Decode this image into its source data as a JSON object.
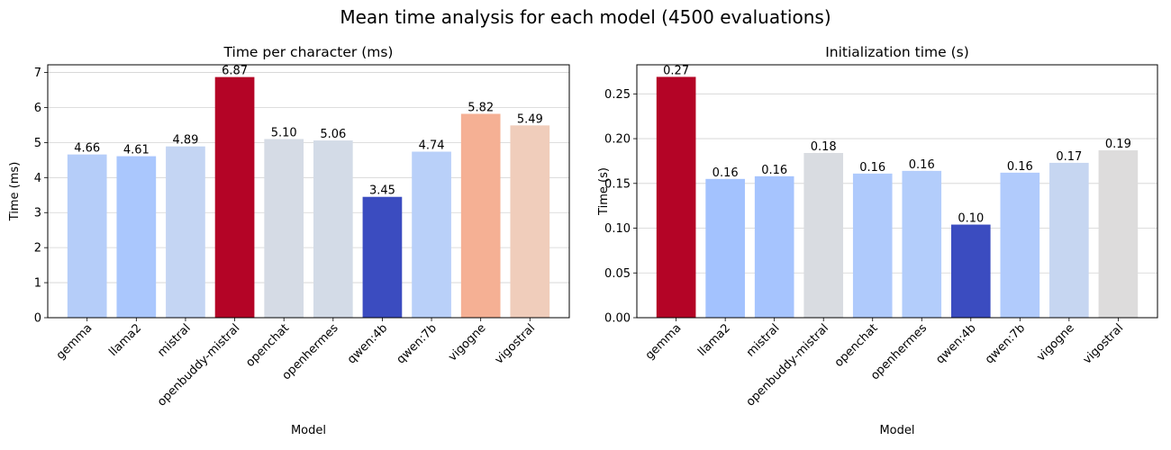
{
  "figure": {
    "title": "Mean time analysis for each model (4500 evaluations)"
  },
  "chart_data": [
    {
      "type": "bar",
      "title": "Time per character (ms)",
      "xlabel": "Model",
      "ylabel": "Time (ms)",
      "categories": [
        "gemma",
        "llama2",
        "mistral",
        "openbuddy-mistral",
        "openchat",
        "openhermes",
        "qwen:4b",
        "qwen:7b",
        "vigogne",
        "vigostral"
      ],
      "values": [
        4.66,
        4.61,
        4.89,
        6.87,
        5.1,
        5.06,
        3.45,
        4.74,
        5.82,
        5.49
      ],
      "value_labels": [
        "4.66",
        "4.61",
        "4.89",
        "6.87",
        "5.10",
        "5.06",
        "3.45",
        "4.74",
        "5.82",
        "5.49"
      ],
      "colors": [
        "#b5cdf9",
        "#aac7fd",
        "#c4d5f3",
        "#b40426",
        "#d5dbe5",
        "#d3dbe7",
        "#3b4cc0",
        "#b9d0f9",
        "#f5b094",
        "#f0cdbb"
      ],
      "ylim": [
        0,
        7.22
      ],
      "yticks": [
        0,
        1,
        2,
        3,
        4,
        5,
        6,
        7
      ],
      "ytick_labels": [
        "0",
        "1",
        "2",
        "3",
        "4",
        "5",
        "6",
        "7"
      ],
      "grid": "horizontal"
    },
    {
      "type": "bar",
      "title": "Initialization time (s)",
      "xlabel": "Model",
      "ylabel": "Time (s)",
      "categories": [
        "gemma",
        "llama2",
        "mistral",
        "openbuddy-mistral",
        "openchat",
        "openhermes",
        "qwen:4b",
        "qwen:7b",
        "vigogne",
        "vigostral"
      ],
      "values": [
        0.269,
        0.155,
        0.158,
        0.184,
        0.161,
        0.164,
        0.104,
        0.162,
        0.173,
        0.187
      ],
      "value_labels": [
        "0.27",
        "0.16",
        "0.16",
        "0.18",
        "0.16",
        "0.16",
        "0.10",
        "0.16",
        "0.17",
        "0.19"
      ],
      "colors": [
        "#b40426",
        "#a3c2fe",
        "#a6c4fe",
        "#d9dce1",
        "#afcafc",
        "#b3cdfb",
        "#3b4cc0",
        "#b1cbfc",
        "#c6d6f1",
        "#dddcdc"
      ],
      "ylim": [
        0,
        0.2825
      ],
      "yticks": [
        0,
        0.05,
        0.1,
        0.15,
        0.2,
        0.25
      ],
      "ytick_labels": [
        "0.00",
        "0.05",
        "0.10",
        "0.15",
        "0.20",
        "0.25"
      ],
      "grid": "horizontal"
    }
  ]
}
